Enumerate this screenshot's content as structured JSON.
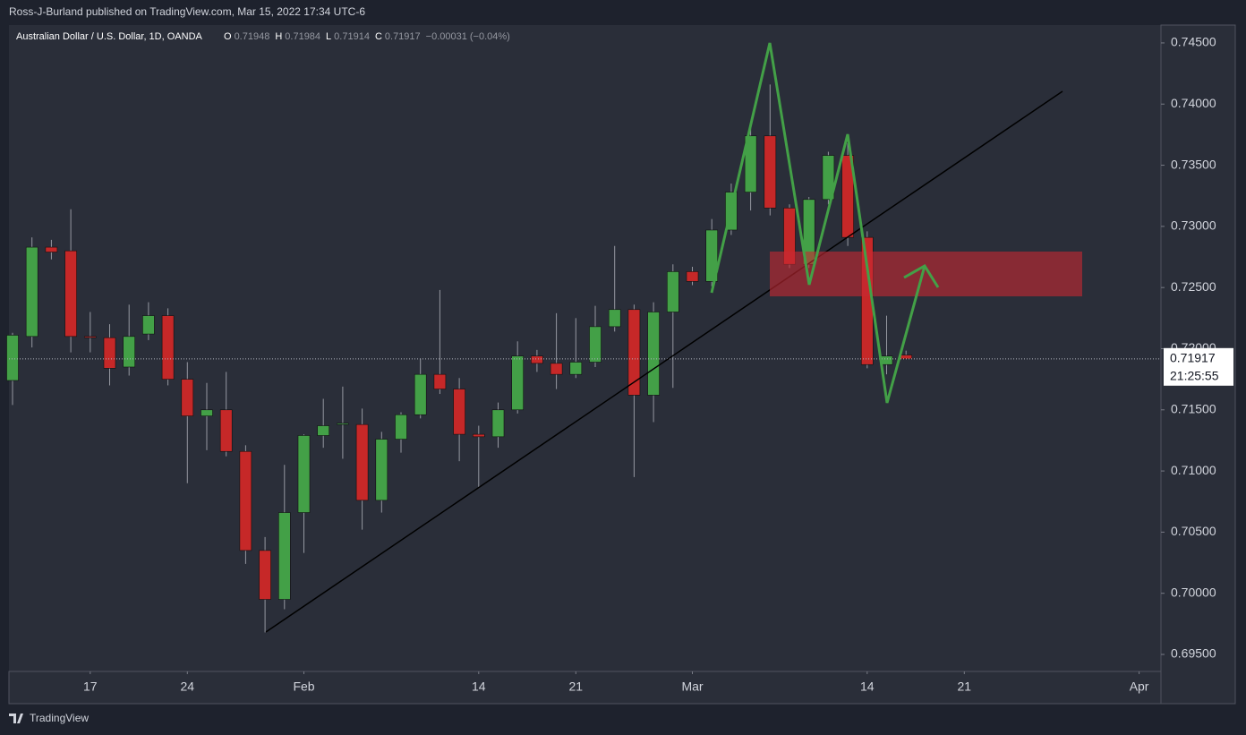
{
  "header": {
    "publisher": "Ross-J-Burland published on TradingView.com, Mar 15, 2022 17:34 UTC-6",
    "logo": "TradingView"
  },
  "chart_data": {
    "type": "candlestick",
    "title": "Australian Dollar / U.S. Dollar, 1D, OANDA",
    "ohlc_labels": {
      "open": "O",
      "high": "H",
      "low": "L",
      "close": "C"
    },
    "change_label": "−0.00031 (−0.04%)",
    "categories": [
      null,
      null,
      null,
      null,
      "17",
      null,
      null,
      null,
      null,
      "24",
      null,
      null,
      null,
      null,
      null,
      "Feb",
      null,
      null,
      null,
      null,
      null,
      null,
      null,
      null,
      "14",
      null,
      null,
      null,
      null,
      "21",
      null,
      null,
      null,
      null,
      null,
      "Mar",
      null,
      null,
      null,
      null,
      null,
      null,
      null,
      null,
      "14",
      null,
      null,
      null,
      null,
      "21",
      null,
      null,
      null,
      null,
      null,
      null,
      null,
      null,
      "Apr"
    ],
    "open": [
      0.7174,
      0.721,
      0.7283,
      0.728,
      0.721,
      0.7209,
      0.7185,
      0.7212,
      0.7227,
      0.7175,
      0.7145,
      0.715,
      0.7116,
      0.7035,
      0.6995,
      0.7066,
      0.7129,
      0.7138,
      0.7138,
      0.7076,
      0.7126,
      0.7146,
      0.7179,
      0.7167,
      0.713,
      0.7128,
      0.715,
      0.7194,
      0.7188,
      0.7179,
      0.7189,
      0.7218,
      0.7232,
      0.7162,
      0.723,
      0.7263,
      0.7255,
      0.7297,
      0.7328,
      0.7374,
      0.7315,
      0.7269,
      0.7322,
      0.7358,
      0.7291,
      0.7187,
      0.71948,
      null,
      null,
      null,
      null,
      null,
      null,
      null,
      null,
      null,
      null,
      null,
      null
    ],
    "high": [
      0.7213,
      0.7291,
      0.7289,
      0.7314,
      0.723,
      0.722,
      0.7236,
      0.7238,
      0.7233,
      0.7189,
      0.7172,
      0.7181,
      0.7121,
      0.7046,
      0.7105,
      0.713,
      0.7159,
      0.7169,
      0.7151,
      0.7132,
      0.7148,
      0.7192,
      0.7248,
      0.7176,
      0.7137,
      0.7156,
      0.7206,
      0.7199,
      0.7229,
      0.7225,
      0.7235,
      0.7284,
      0.7236,
      0.7238,
      0.7269,
      0.7267,
      0.7306,
      0.7335,
      0.7384,
      0.7416,
      0.7318,
      0.7324,
      0.7361,
      0.7368,
      0.7296,
      0.7227,
      0.71984,
      null,
      null,
      null,
      null,
      null,
      null,
      null,
      null,
      null,
      null,
      null,
      null
    ],
    "low": [
      0.7154,
      0.7201,
      0.7273,
      0.7197,
      0.7197,
      0.717,
      0.7178,
      0.7207,
      0.717,
      0.709,
      0.7117,
      0.7112,
      0.7024,
      0.6968,
      0.6987,
      0.7033,
      0.7119,
      0.711,
      0.7052,
      0.7066,
      0.7115,
      0.7143,
      0.7163,
      0.7108,
      0.7086,
      0.7119,
      0.7147,
      0.7181,
      0.7167,
      0.7176,
      0.7185,
      0.7214,
      0.7095,
      0.714,
      0.7168,
      0.7252,
      0.7251,
      0.7293,
      0.7313,
      0.7309,
      0.7266,
      0.7266,
      0.7318,
      0.7284,
      0.7184,
      0.7179,
      0.71914,
      null,
      null,
      null,
      null,
      null,
      null,
      null,
      null,
      null,
      null,
      null,
      null
    ],
    "close": [
      0.7211,
      0.7283,
      0.7279,
      0.721,
      0.7209,
      0.7184,
      0.721,
      0.7227,
      0.7175,
      0.7145,
      0.715,
      0.7116,
      0.7035,
      0.6995,
      0.7066,
      0.7129,
      0.7137,
      0.7139,
      0.7076,
      0.7126,
      0.7146,
      0.7179,
      0.7167,
      0.713,
      0.7128,
      0.715,
      0.7194,
      0.7188,
      0.7179,
      0.7189,
      0.7218,
      0.7232,
      0.7162,
      0.723,
      0.7263,
      0.7255,
      0.7297,
      0.7328,
      0.7374,
      0.7315,
      0.7269,
      0.7322,
      0.7358,
      0.7291,
      0.7187,
      0.7194,
      0.71917,
      null,
      null,
      null,
      null,
      null,
      null,
      null,
      null,
      null,
      null,
      null,
      null
    ],
    "up_color": "#43a047",
    "down_color": "#c62828",
    "ylim": [
      0.69361,
      0.74646
    ],
    "yticks": [
      {
        "value": 0.695,
        "label": "0.69500"
      },
      {
        "value": 0.7,
        "label": "0.70000"
      },
      {
        "value": 0.705,
        "label": "0.70500"
      },
      {
        "value": 0.71,
        "label": "0.71000"
      },
      {
        "value": 0.715,
        "label": "0.71500"
      },
      {
        "value": 0.72,
        "label": "0.72000"
      },
      {
        "value": 0.725,
        "label": "0.72500"
      },
      {
        "value": 0.73,
        "label": "0.73000"
      },
      {
        "value": 0.735,
        "label": "0.73500"
      },
      {
        "value": 0.74,
        "label": "0.74000"
      },
      {
        "value": 0.745,
        "label": "0.74500"
      }
    ],
    "countdown": "21:25:55"
  }
}
